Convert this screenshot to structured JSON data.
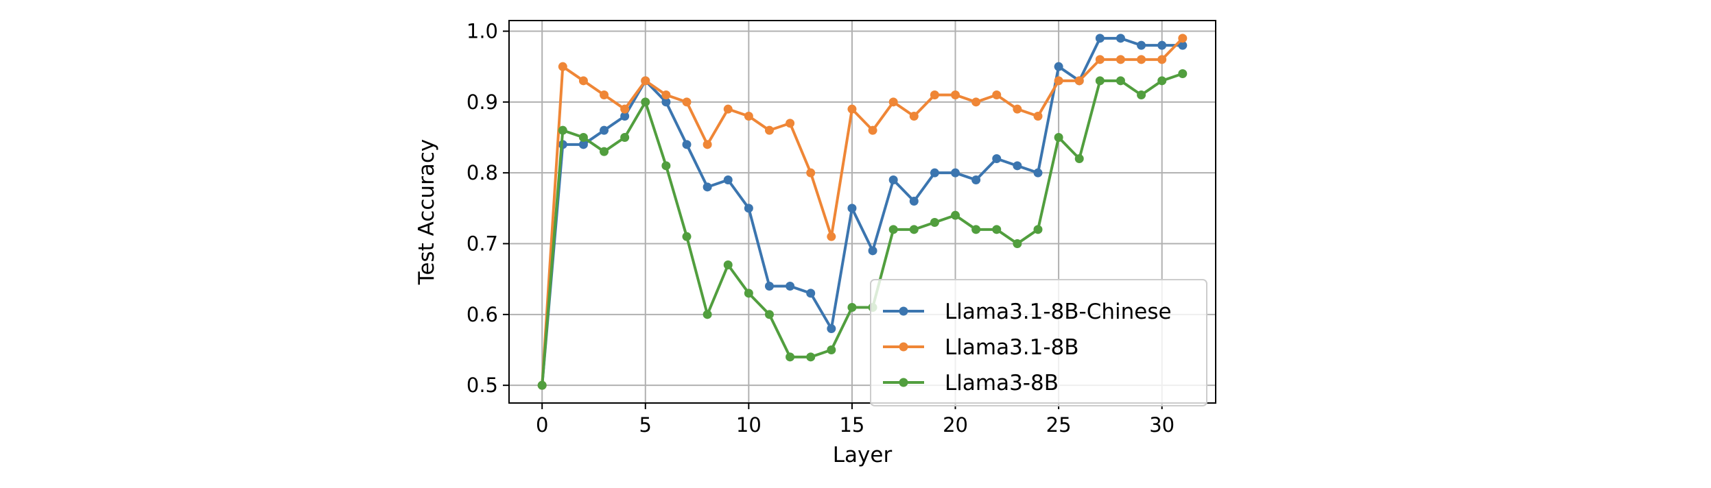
{
  "chart_data": {
    "type": "line",
    "title": "",
    "xlabel": "Layer",
    "ylabel": "Test Accuracy",
    "xlim": [
      -1.6,
      32.6
    ],
    "ylim": [
      0.475,
      1.015
    ],
    "xticks": [
      0,
      5,
      10,
      15,
      20,
      25,
      30
    ],
    "yticks": [
      0.5,
      0.6,
      0.7,
      0.8,
      0.9,
      1.0
    ],
    "xtick_labels": [
      "0",
      "5",
      "10",
      "15",
      "20",
      "25",
      "30"
    ],
    "ytick_labels": [
      "0.5",
      "0.6",
      "0.7",
      "0.8",
      "0.9",
      "1.0"
    ],
    "grid": true,
    "legend_position": "lower-right",
    "x": [
      0,
      1,
      2,
      3,
      4,
      5,
      6,
      7,
      8,
      9,
      10,
      11,
      12,
      13,
      14,
      15,
      16,
      17,
      18,
      19,
      20,
      21,
      22,
      23,
      24,
      25,
      26,
      27,
      28,
      29,
      30,
      31
    ],
    "series": [
      {
        "name": "Llama3.1-8B-Chinese",
        "color": "#3b75af",
        "values": [
          0.5,
          0.84,
          0.84,
          0.86,
          0.88,
          0.93,
          0.9,
          0.84,
          0.78,
          0.79,
          0.75,
          0.64,
          0.64,
          0.63,
          0.58,
          0.75,
          0.69,
          0.79,
          0.76,
          0.8,
          0.8,
          0.79,
          0.82,
          0.81,
          0.8,
          0.95,
          0.93,
          0.99,
          0.99,
          0.98,
          0.98,
          0.98
        ]
      },
      {
        "name": "Llama3.1-8B",
        "color": "#ef8636",
        "values": [
          0.5,
          0.95,
          0.93,
          0.91,
          0.89,
          0.93,
          0.91,
          0.9,
          0.84,
          0.89,
          0.88,
          0.86,
          0.87,
          0.8,
          0.71,
          0.89,
          0.86,
          0.9,
          0.88,
          0.91,
          0.91,
          0.9,
          0.91,
          0.89,
          0.88,
          0.93,
          0.93,
          0.96,
          0.96,
          0.96,
          0.96,
          0.99
        ]
      },
      {
        "name": "Llama3-8B",
        "color": "#519e3e",
        "values": [
          0.5,
          0.86,
          0.85,
          0.83,
          0.85,
          0.9,
          0.81,
          0.71,
          0.6,
          0.67,
          0.63,
          0.6,
          0.54,
          0.54,
          0.55,
          0.61,
          0.61,
          0.72,
          0.72,
          0.73,
          0.74,
          0.72,
          0.72,
          0.7,
          0.72,
          0.85,
          0.82,
          0.93,
          0.93,
          0.91,
          0.93,
          0.94
        ]
      }
    ]
  }
}
